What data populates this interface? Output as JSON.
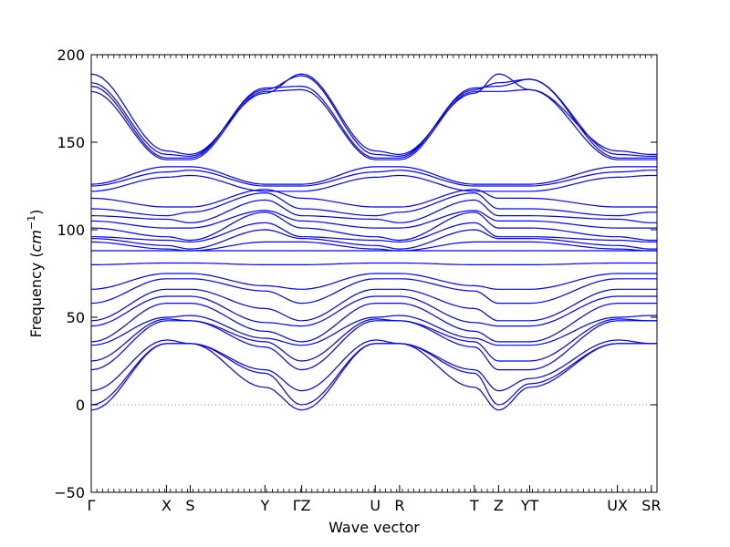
{
  "chart_data": {
    "type": "line",
    "title": "",
    "xlabel": "Wave vector",
    "ylabel": "Frequency",
    "ylabel_unit": "cm",
    "ylabel_unit_exp": "−1",
    "ylim": [
      -50,
      200
    ],
    "yticks": [
      -50,
      0,
      50,
      100,
      150,
      200
    ],
    "grid": false,
    "legend": "none",
    "zero_line": true,
    "colors": {
      "bands": "#0000ff",
      "zero_line": "#808080",
      "axes": "#000000"
    },
    "xticks": [
      "Γ",
      "X",
      "S",
      "Y",
      "ΓZ",
      "U",
      "R",
      "T",
      "Z",
      "YT",
      "UX",
      "SR"
    ],
    "kpoints": [
      0,
      0.133,
      0.175,
      0.307,
      0.372,
      0.502,
      0.545,
      0.677,
      0.72,
      0.775,
      0.93,
      0.99,
      1.0
    ],
    "series": [
      {
        "values": [
          189,
          145,
          143,
          178,
          189,
          145,
          143,
          178,
          189,
          180,
          145,
          143,
          143
        ]
      },
      {
        "values": [
          184,
          143,
          142,
          180,
          188,
          143,
          142,
          180,
          184,
          186,
          143,
          142,
          142
        ]
      },
      {
        "values": [
          182,
          141,
          141,
          181,
          182,
          141,
          141,
          181,
          182,
          186,
          141,
          141,
          141
        ]
      },
      {
        "values": [
          179,
          140,
          140,
          179,
          180,
          140,
          140,
          179,
          179,
          180,
          140,
          140,
          140
        ]
      },
      {
        "values": [
          126,
          136,
          136,
          126,
          126,
          136,
          136,
          126,
          126,
          126,
          136,
          136,
          136
        ]
      },
      {
        "values": [
          125,
          133,
          134,
          125,
          125,
          133,
          134,
          125,
          125,
          125,
          133,
          134,
          134
        ]
      },
      {
        "values": [
          122,
          130,
          131,
          122,
          122,
          130,
          131,
          122,
          122,
          122,
          130,
          131,
          131
        ]
      },
      {
        "values": [
          118,
          113,
          113,
          123,
          118,
          113,
          113,
          123,
          118,
          118,
          113,
          113,
          113
        ]
      },
      {
        "values": [
          112,
          108,
          110,
          121,
          112,
          108,
          110,
          121,
          112,
          112,
          108,
          110,
          110
        ]
      },
      {
        "values": [
          108,
          106,
          104,
          117,
          108,
          106,
          104,
          117,
          108,
          108,
          106,
          104,
          104
        ]
      },
      {
        "values": [
          105,
          101,
          101,
          111,
          105,
          101,
          101,
          111,
          105,
          105,
          101,
          101,
          101
        ]
      },
      {
        "values": [
          101,
          96,
          94,
          110,
          101,
          96,
          94,
          110,
          101,
          101,
          96,
          94,
          94
        ]
      },
      {
        "values": [
          96,
          94,
          93,
          104,
          96,
          94,
          93,
          104,
          96,
          96,
          94,
          93,
          93
        ]
      },
      {
        "values": [
          95,
          91,
          89,
          100,
          95,
          91,
          89,
          100,
          95,
          95,
          91,
          89,
          89
        ]
      },
      {
        "values": [
          93,
          89,
          88,
          93,
          93,
          89,
          88,
          93,
          93,
          93,
          89,
          88,
          88
        ]
      },
      {
        "values": [
          88,
          88,
          88,
          88,
          88,
          88,
          88,
          88,
          88,
          88,
          88,
          88,
          88
        ]
      },
      {
        "values": [
          80,
          81,
          81,
          80,
          80,
          81,
          81,
          80,
          80,
          80,
          81,
          81,
          81
        ]
      },
      {
        "values": [
          66,
          75,
          75,
          68,
          66,
          75,
          75,
          68,
          66,
          66,
          75,
          75,
          75
        ]
      },
      {
        "values": [
          58,
          72,
          72,
          65,
          58,
          72,
          72,
          65,
          58,
          58,
          72,
          72,
          72
        ]
      },
      {
        "values": [
          48,
          66,
          66,
          55,
          48,
          66,
          66,
          55,
          48,
          48,
          66,
          66,
          66
        ]
      },
      {
        "values": [
          45,
          62,
          62,
          47,
          45,
          62,
          62,
          47,
          45,
          45,
          62,
          62,
          62
        ]
      },
      {
        "values": [
          36,
          58,
          58,
          42,
          36,
          58,
          58,
          42,
          36,
          36,
          58,
          58,
          58
        ]
      },
      {
        "values": [
          34,
          50,
          51,
          38,
          34,
          50,
          51,
          38,
          34,
          34,
          50,
          51,
          51
        ]
      },
      {
        "values": [
          25,
          49,
          48,
          36,
          25,
          49,
          48,
          36,
          25,
          25,
          49,
          48,
          48
        ]
      },
      {
        "values": [
          20,
          48,
          48,
          33,
          20,
          48,
          48,
          33,
          20,
          20,
          48,
          48,
          48
        ]
      },
      {
        "values": [
          8,
          37,
          35,
          20,
          8,
          37,
          35,
          20,
          8,
          15,
          37,
          35,
          35
        ]
      },
      {
        "values": [
          0,
          35,
          35,
          18,
          0,
          35,
          35,
          18,
          0,
          12,
          35,
          35,
          35
        ]
      },
      {
        "values": [
          -3,
          35,
          35,
          10,
          -3,
          35,
          35,
          10,
          -3,
          10,
          35,
          35,
          35
        ]
      }
    ]
  }
}
